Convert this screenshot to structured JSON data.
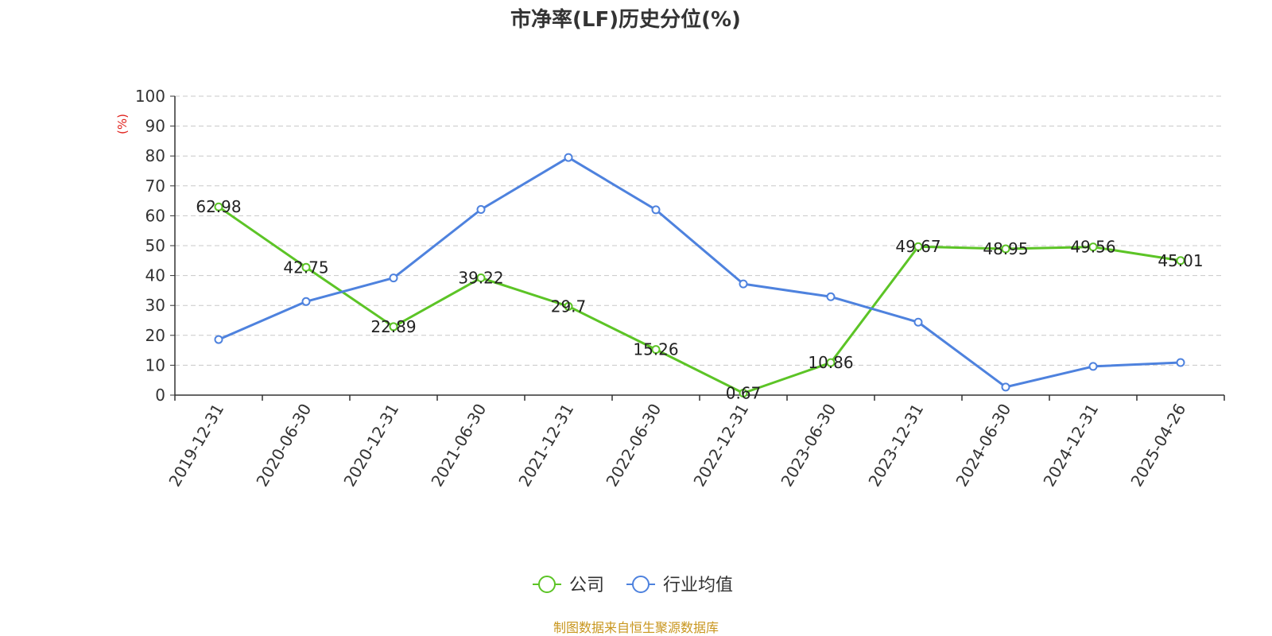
{
  "chart_data": {
    "type": "line",
    "title": "市净率(LF)历史分位(%)",
    "ylabel": "(%)",
    "ylim": [
      0,
      100
    ],
    "yticks": [
      0,
      10,
      20,
      30,
      40,
      50,
      60,
      70,
      80,
      90,
      100
    ],
    "grid": true,
    "legend_position": "bottom",
    "categories": [
      "2019-12-31",
      "2020-06-30",
      "2020-12-31",
      "2021-06-30",
      "2021-12-31",
      "2022-06-30",
      "2022-12-31",
      "2023-06-30",
      "2023-12-31",
      "2024-06-30",
      "2024-12-31",
      "2025-04-26"
    ],
    "series": [
      {
        "name": "公司",
        "color": "#5cc426",
        "values": [
          62.98,
          42.75,
          22.89,
          39.22,
          29.7,
          15.26,
          0.67,
          10.86,
          49.67,
          48.95,
          49.56,
          45.01
        ],
        "labels": [
          "62.98",
          "42.75",
          "22.89",
          "39.22",
          "29.7",
          "15.26",
          "0.67",
          "10.86",
          "49.67",
          "48.95",
          "49.56",
          "45.01"
        ],
        "show_labels": true
      },
      {
        "name": "行业均值",
        "color": "#4e82de",
        "values": [
          18.6,
          31.3,
          39.2,
          62.1,
          79.5,
          62.0,
          37.2,
          32.9,
          24.4,
          2.7,
          9.6,
          10.9
        ],
        "show_labels": false
      }
    ],
    "source": "制图数据来自恒生聚源数据库"
  },
  "colors": {
    "unit_label": "#e0201b",
    "source_text": "#c8961e",
    "axis": "#333333",
    "grid": "#c8c8c8"
  }
}
